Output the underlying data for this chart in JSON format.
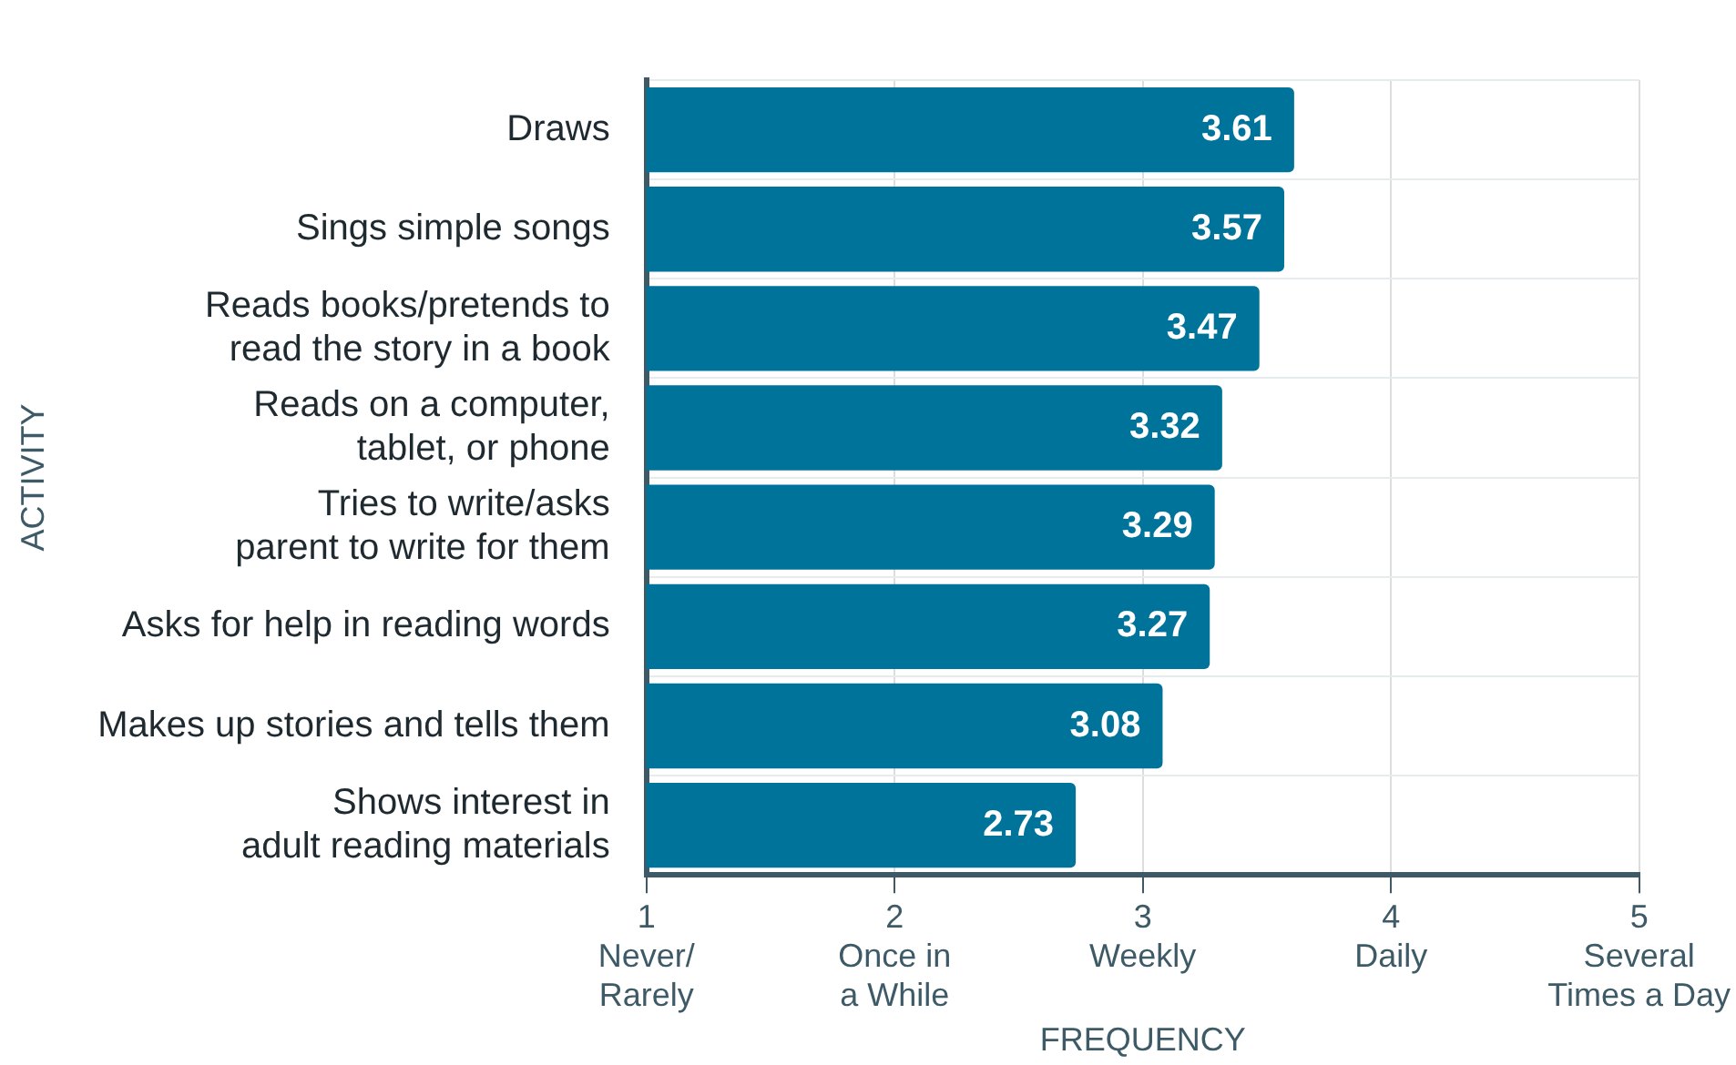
{
  "chart_data": {
    "type": "bar",
    "orientation": "horizontal",
    "xlabel": "FREQUENCY",
    "ylabel": "ACTIVITY",
    "categories": [
      "Draws",
      "Sings simple songs",
      "Reads books/pretends to\nread the story in a book",
      "Reads on a computer,\ntablet, or phone",
      "Tries to write/asks\nparent to write for them",
      "Asks for help in reading words",
      "Makes up stories and tells them",
      "Shows interest in\nadult reading materials"
    ],
    "values": [
      3.61,
      3.57,
      3.47,
      3.32,
      3.29,
      3.27,
      3.08,
      2.73
    ],
    "color": "#00739a",
    "xlim": [
      1,
      5
    ],
    "xticks": [
      {
        "value": 1,
        "label": "1\nNever/\nRarely"
      },
      {
        "value": 2,
        "label": "2\nOnce in\na While"
      },
      {
        "value": 3,
        "label": "3\nWeekly"
      },
      {
        "value": 4,
        "label": "4\nDaily"
      },
      {
        "value": 5,
        "label": "5\nSeveral\nTimes a Day"
      }
    ],
    "grid": true,
    "data_labels": true
  }
}
